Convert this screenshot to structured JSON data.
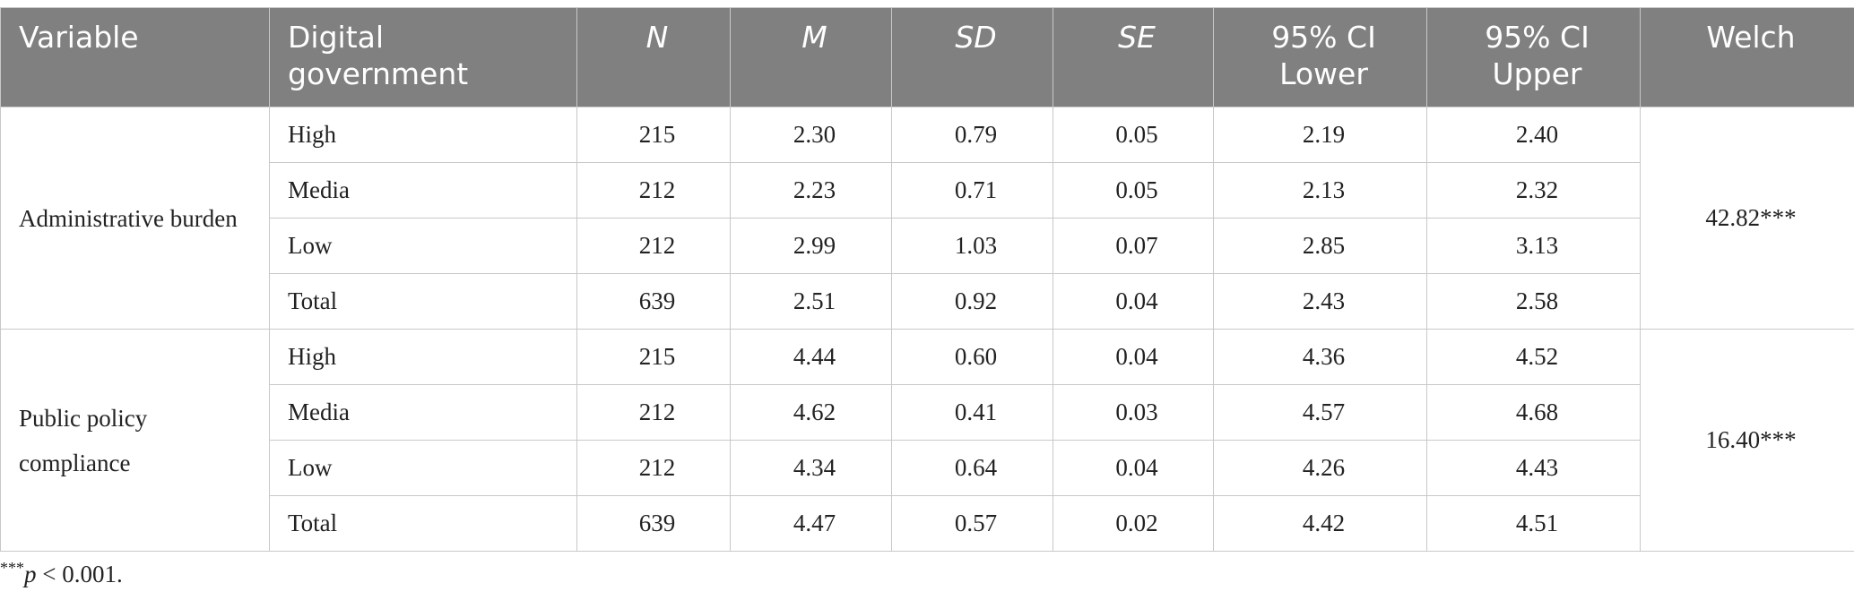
{
  "headers": [
    "Variable",
    "Digital government",
    "N",
    "M",
    "SD",
    "SE",
    "95% CI Lower",
    "95% CI Upper",
    "Welch"
  ],
  "groups": [
    {
      "variable": "Administrative burden",
      "welch": "42.82***",
      "rows": [
        [
          "High",
          "215",
          "2.30",
          "0.79",
          "0.05",
          "2.19",
          "2.40"
        ],
        [
          "Media",
          "212",
          "2.23",
          "0.71",
          "0.05",
          "2.13",
          "2.32"
        ],
        [
          "Low",
          "212",
          "2.99",
          "1.03",
          "0.07",
          "2.85",
          "3.13"
        ],
        [
          "Total",
          "639",
          "2.51",
          "0.92",
          "0.04",
          "2.43",
          "2.58"
        ]
      ]
    },
    {
      "variable": "Public policy compliance",
      "welch": "16.40***",
      "rows": [
        [
          "High",
          "215",
          "4.44",
          "0.60",
          "0.04",
          "4.36",
          "4.52"
        ],
        [
          "Media",
          "212",
          "4.62",
          "0.41",
          "0.03",
          "4.57",
          "4.68"
        ],
        [
          "Low",
          "212",
          "4.34",
          "0.64",
          "0.04",
          "4.26",
          "4.43"
        ],
        [
          "Total",
          "639",
          "4.47",
          "0.57",
          "0.02",
          "4.42",
          "4.51"
        ]
      ]
    }
  ],
  "footnote": {
    "marker": "***",
    "symbol": "p",
    "text": " < 0.001."
  }
}
